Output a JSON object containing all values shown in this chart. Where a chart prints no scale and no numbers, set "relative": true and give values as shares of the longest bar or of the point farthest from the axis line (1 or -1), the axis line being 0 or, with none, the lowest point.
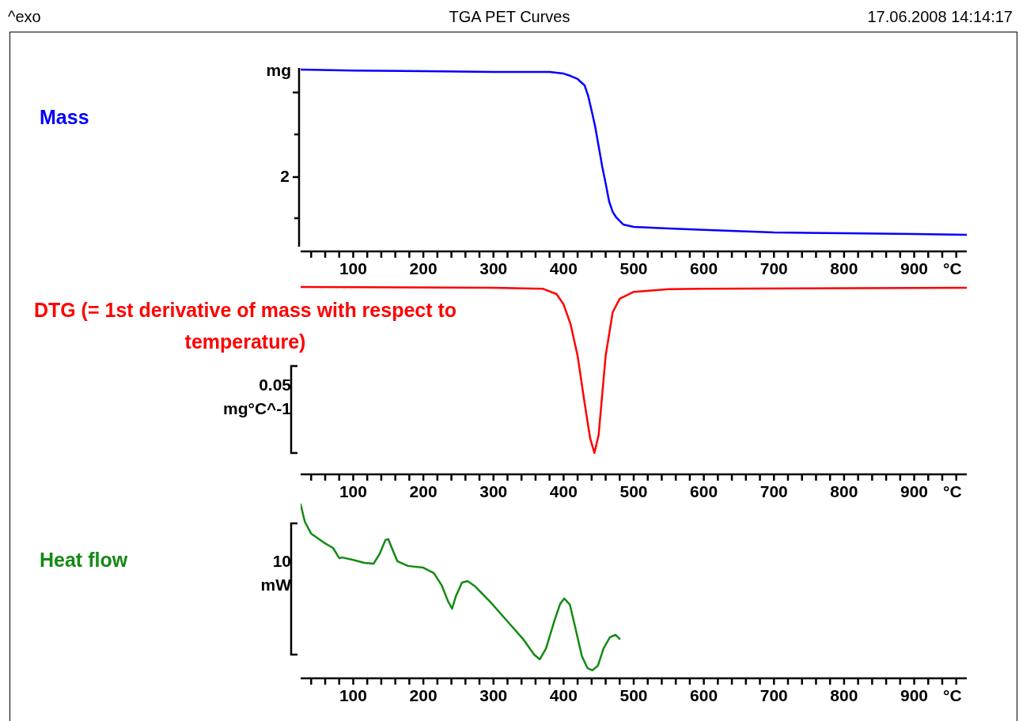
{
  "chart_data": [
    {
      "type": "line",
      "title": "TGA PET Curves",
      "ylabel": "mg",
      "xlabel": "°C",
      "relative": true,
      "annotations": [
        "^exo",
        "17.06.2008 14:14:17",
        "2",
        "Mass"
      ],
      "xlim": [
        25,
        975
      ],
      "xticks": [
        {
          "value": 40,
          "label": null
        },
        {
          "value": 60,
          "label": null
        },
        {
          "value": 80,
          "label": null
        },
        100,
        {
          "value": 120,
          "label": null
        },
        {
          "value": 140,
          "label": null
        },
        {
          "value": 160,
          "label": null
        },
        {
          "value": 180,
          "label": null
        },
        200,
        {
          "value": 220,
          "label": null
        },
        {
          "value": 240,
          "label": null
        },
        {
          "value": 260,
          "label": null
        },
        {
          "value": 280,
          "label": null
        },
        300,
        {
          "value": 320,
          "label": null
        },
        {
          "value": 340,
          "label": null
        },
        {
          "value": 360,
          "label": null
        },
        {
          "value": 380,
          "label": null
        },
        400,
        {
          "value": 420,
          "label": null
        },
        {
          "value": 440,
          "label": null
        },
        {
          "value": 460,
          "label": null
        },
        {
          "value": 480,
          "label": null
        },
        500,
        {
          "value": 520,
          "label": null
        },
        {
          "value": 540,
          "label": null
        },
        {
          "value": 560,
          "label": null
        },
        {
          "value": 580,
          "label": null
        },
        600,
        {
          "value": 620,
          "label": null
        },
        {
          "value": 640,
          "label": null
        },
        {
          "value": 660,
          "label": null
        },
        {
          "value": 680,
          "label": null
        },
        700,
        {
          "value": 720,
          "label": null
        },
        {
          "value": 740,
          "label": null
        },
        {
          "value": 760,
          "label": null
        },
        {
          "value": 780,
          "label": null
        },
        800,
        {
          "value": 820,
          "label": null
        },
        {
          "value": 840,
          "label": null
        },
        {
          "value": 860,
          "label": null
        },
        {
          "value": 880,
          "label": null
        },
        900,
        {
          "value": 920,
          "label": null
        },
        {
          "value": 940,
          "label": null
        },
        {
          "value": 960,
          "label": null
        }
      ],
      "series": [
        {
          "color": "#0000ff",
          "x": [
            25,
            100,
            200,
            300,
            380,
            400,
            410,
            420,
            430,
            435,
            440,
            445,
            450,
            455,
            460,
            465,
            470,
            475,
            485,
            500,
            550,
            600,
            700,
            800,
            900,
            975
          ],
          "values": [
            1.0,
            0.995,
            0.991,
            0.987,
            0.987,
            0.978,
            0.965,
            0.948,
            0.913,
            0.856,
            0.774,
            0.687,
            0.578,
            0.469,
            0.374,
            0.274,
            0.218,
            0.187,
            0.148,
            0.135,
            0.126,
            0.118,
            0.104,
            0.1,
            0.096,
            0.091
          ]
        }
      ]
    },
    {
      "type": "line",
      "title": "DTG (= 1st derivative of mass with respect to temperature)",
      "ylabel": "0.05\nmg°C^-1",
      "xlabel": "°C",
      "relative": true,
      "xlim": [
        25,
        975
      ],
      "xticks": [
        {
          "value": 40,
          "label": null
        },
        {
          "value": 60,
          "label": null
        },
        {
          "value": 80,
          "label": null
        },
        100,
        {
          "value": 120,
          "label": null
        },
        {
          "value": 140,
          "label": null
        },
        {
          "value": 160,
          "label": null
        },
        {
          "value": 180,
          "label": null
        },
        200,
        {
          "value": 220,
          "label": null
        },
        {
          "value": 240,
          "label": null
        },
        {
          "value": 260,
          "label": null
        },
        {
          "value": 280,
          "label": null
        },
        300,
        {
          "value": 320,
          "label": null
        },
        {
          "value": 340,
          "label": null
        },
        {
          "value": 360,
          "label": null
        },
        {
          "value": 380,
          "label": null
        },
        400,
        {
          "value": 420,
          "label": null
        },
        {
          "value": 440,
          "label": null
        },
        {
          "value": 460,
          "label": null
        },
        {
          "value": 480,
          "label": null
        },
        500,
        {
          "value": 520,
          "label": null
        },
        {
          "value": 540,
          "label": null
        },
        {
          "value": 560,
          "label": null
        },
        {
          "value": 580,
          "label": null
        },
        600,
        {
          "value": 620,
          "label": null
        },
        {
          "value": 640,
          "label": null
        },
        {
          "value": 660,
          "label": null
        },
        {
          "value": 680,
          "label": null
        },
        700,
        {
          "value": 720,
          "label": null
        },
        {
          "value": 740,
          "label": null
        },
        {
          "value": 760,
          "label": null
        },
        {
          "value": 780,
          "label": null
        },
        800,
        {
          "value": 820,
          "label": null
        },
        {
          "value": 840,
          "label": null
        },
        {
          "value": 860,
          "label": null
        },
        {
          "value": 880,
          "label": null
        },
        900,
        {
          "value": 920,
          "label": null
        },
        {
          "value": 940,
          "label": null
        },
        {
          "value": 960,
          "label": null
        }
      ],
      "series": [
        {
          "color": "#ff0000",
          "x": [
            25,
            300,
            370,
            390,
            400,
            410,
            420,
            430,
            438,
            444,
            450,
            455,
            460,
            470,
            480,
            500,
            550,
            600,
            975
          ],
          "values": [
            1.0,
            0.996,
            0.991,
            0.962,
            0.907,
            0.801,
            0.633,
            0.38,
            0.19,
            0.114,
            0.211,
            0.422,
            0.633,
            0.865,
            0.937,
            0.974,
            0.988,
            0.991,
            0.996
          ]
        }
      ]
    },
    {
      "type": "line",
      "annotations": [
        "Heat flow"
      ],
      "ylabel": "10\nmW",
      "xlabel": "°C",
      "relative": true,
      "xlim": [
        25,
        975
      ],
      "xticks": [
        {
          "value": 40,
          "label": null
        },
        {
          "value": 60,
          "label": null
        },
        {
          "value": 80,
          "label": null
        },
        100,
        {
          "value": 120,
          "label": null
        },
        {
          "value": 140,
          "label": null
        },
        {
          "value": 160,
          "label": null
        },
        {
          "value": 180,
          "label": null
        },
        200,
        {
          "value": 220,
          "label": null
        },
        {
          "value": 240,
          "label": null
        },
        {
          "value": 260,
          "label": null
        },
        {
          "value": 280,
          "label": null
        },
        300,
        {
          "value": 320,
          "label": null
        },
        {
          "value": 340,
          "label": null
        },
        {
          "value": 360,
          "label": null
        },
        {
          "value": 380,
          "label": null
        },
        400,
        {
          "value": 420,
          "label": null
        },
        {
          "value": 440,
          "label": null
        },
        {
          "value": 460,
          "label": null
        },
        {
          "value": 480,
          "label": null
        },
        500,
        {
          "value": 520,
          "label": null
        },
        {
          "value": 540,
          "label": null
        },
        {
          "value": 560,
          "label": null
        },
        {
          "value": 580,
          "label": null
        },
        600,
        {
          "value": 620,
          "label": null
        },
        {
          "value": 640,
          "label": null
        },
        {
          "value": 660,
          "label": null
        },
        {
          "value": 680,
          "label": null
        },
        700,
        {
          "value": 720,
          "label": null
        },
        {
          "value": 740,
          "label": null
        },
        {
          "value": 760,
          "label": null
        },
        {
          "value": 780,
          "label": null
        },
        800,
        {
          "value": 820,
          "label": null
        },
        {
          "value": 840,
          "label": null
        },
        {
          "value": 860,
          "label": null
        },
        {
          "value": 880,
          "label": null
        },
        900,
        {
          "value": 920,
          "label": null
        },
        {
          "value": 940,
          "label": null
        },
        {
          "value": 960,
          "label": null
        }
      ],
      "series": [
        {
          "color": "#138a13",
          "x": [
            25,
            31,
            40,
            59,
            71,
            76,
            80,
            84,
            99,
            116,
            129,
            138,
            146,
            150,
            155,
            163,
            178,
            200,
            215,
            226,
            235,
            241,
            246,
            255,
            263,
            274,
            296,
            319,
            342,
            358,
            366,
            375,
            387,
            395,
            401,
            409,
            417,
            426,
            434,
            441,
            449,
            457,
            466,
            474,
            480
          ],
          "values": [
            1.0,
            0.9,
            0.832,
            0.778,
            0.75,
            0.718,
            0.691,
            0.695,
            0.682,
            0.664,
            0.659,
            0.718,
            0.796,
            0.8,
            0.75,
            0.673,
            0.646,
            0.636,
            0.605,
            0.536,
            0.445,
            0.4,
            0.468,
            0.55,
            0.559,
            0.528,
            0.437,
            0.332,
            0.227,
            0.136,
            0.109,
            0.172,
            0.332,
            0.427,
            0.459,
            0.423,
            0.286,
            0.128,
            0.059,
            0.046,
            0.073,
            0.172,
            0.236,
            0.25,
            0.227
          ]
        }
      ]
    }
  ]
}
